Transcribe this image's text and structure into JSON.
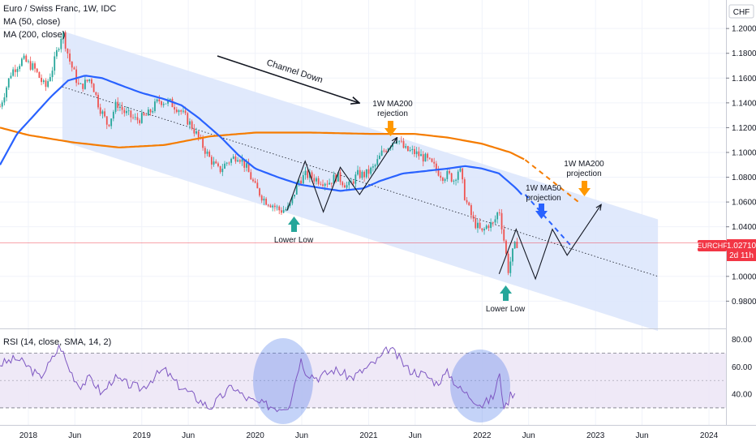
{
  "header": {
    "title": "Euro / Swiss Franc, 1W, IDC",
    "ma50": "MA (50, close)",
    "ma200": "MA (200, close)",
    "currency": "CHF"
  },
  "rsi": {
    "title": "RSI (14, close, SMA, 14, 2)",
    "ticks": [
      "80.00",
      "60.00",
      "40.00"
    ]
  },
  "price_label": {
    "symbol": "EURCHF",
    "value": "1.02710",
    "countdown": "2d 11h"
  },
  "annotations": {
    "channel": "Channel Down",
    "rejection_1": "1W MA200",
    "rejection_2": "rejection",
    "ma200_proj_1": "1W MA200",
    "ma200_proj_2": "projection",
    "ma50_proj_1": "1W MA50",
    "ma50_proj_2": "projection",
    "lower_low_1": "Lower Low",
    "lower_low_2": "Lower Low"
  },
  "colors": {
    "up": "#26a69a",
    "down": "#ef5350",
    "ma50": "#2962ff",
    "ma200": "#f57c00",
    "channel_fill": "#dbe5fb",
    "rsi_line": "#7e57c2",
    "rsi_band": "#ede7f6",
    "price_tag": "#f23645",
    "arrow_orange": "#ff9800",
    "arrow_blue": "#2962ff",
    "arrow_green": "#26a69a"
  },
  "chart_data": {
    "type": "candlestick",
    "x_axis": {
      "labels": [
        "2018",
        "Jun",
        "2019",
        "Jun",
        "2020",
        "Jun",
        "2021",
        "Jun",
        "2022",
        "Jun",
        "2023",
        "Jun",
        "2024"
      ],
      "label_times": [
        2018.0,
        2018.41,
        2019.0,
        2019.41,
        2020.0,
        2020.41,
        2021.0,
        2021.41,
        2022.0,
        2022.41,
        2023.0,
        2023.41,
        2024.0
      ],
      "range": [
        2017.75,
        2024.15
      ]
    },
    "y_axis": {
      "ticks": [
        "1.20000",
        "1.18000",
        "1.16000",
        "1.14000",
        "1.12000",
        "1.10000",
        "1.08000",
        "1.06000",
        "1.04000",
        "1.00000",
        "0.98000"
      ],
      "tick_values": [
        1.2,
        1.18,
        1.16,
        1.14,
        1.12,
        1.1,
        1.08,
        1.06,
        1.04,
        1.0,
        0.98
      ],
      "range": [
        0.958,
        1.223
      ]
    },
    "price_series_anchors": [
      [
        2017.75,
        1.137
      ],
      [
        2017.85,
        1.165
      ],
      [
        2017.95,
        1.175
      ],
      [
        2018.05,
        1.168
      ],
      [
        2018.15,
        1.152
      ],
      [
        2018.22,
        1.17
      ],
      [
        2018.3,
        1.198
      ],
      [
        2018.36,
        1.175
      ],
      [
        2018.45,
        1.152
      ],
      [
        2018.55,
        1.16
      ],
      [
        2018.62,
        1.138
      ],
      [
        2018.7,
        1.122
      ],
      [
        2018.78,
        1.14
      ],
      [
        2018.85,
        1.132
      ],
      [
        2018.95,
        1.126
      ],
      [
        2019.05,
        1.13
      ],
      [
        2019.15,
        1.142
      ],
      [
        2019.25,
        1.14
      ],
      [
        2019.33,
        1.135
      ],
      [
        2019.45,
        1.12
      ],
      [
        2019.52,
        1.108
      ],
      [
        2019.6,
        1.095
      ],
      [
        2019.68,
        1.085
      ],
      [
        2019.75,
        1.092
      ],
      [
        2019.85,
        1.098
      ],
      [
        2019.92,
        1.088
      ],
      [
        2020.0,
        1.072
      ],
      [
        2020.08,
        1.062
      ],
      [
        2020.15,
        1.058
      ],
      [
        2020.22,
        1.053
      ],
      [
        2020.3,
        1.055
      ],
      [
        2020.38,
        1.077
      ],
      [
        2020.45,
        1.082
      ],
      [
        2020.55,
        1.078
      ],
      [
        2020.65,
        1.076
      ],
      [
        2020.72,
        1.081
      ],
      [
        2020.82,
        1.072
      ],
      [
        2020.9,
        1.082
      ],
      [
        2020.97,
        1.082
      ],
      [
        2021.05,
        1.088
      ],
      [
        2021.12,
        1.1
      ],
      [
        2021.2,
        1.108
      ],
      [
        2021.25,
        1.112
      ],
      [
        2021.32,
        1.102
      ],
      [
        2021.4,
        1.1
      ],
      [
        2021.5,
        1.095
      ],
      [
        2021.58,
        1.088
      ],
      [
        2021.65,
        1.081
      ],
      [
        2021.7,
        1.082
      ],
      [
        2021.75,
        1.078
      ],
      [
        2021.8,
        1.088
      ],
      [
        2021.85,
        1.063
      ],
      [
        2021.92,
        1.045
      ],
      [
        2022.0,
        1.035
      ],
      [
        2022.05,
        1.042
      ],
      [
        2022.1,
        1.042
      ],
      [
        2022.15,
        1.055
      ],
      [
        2022.2,
        1.025
      ],
      [
        2022.23,
        1.005
      ],
      [
        2022.28,
        1.023
      ],
      [
        2022.31,
        1.027
      ]
    ],
    "ma50_anchors": [
      [
        2017.75,
        1.09
      ],
      [
        2017.9,
        1.115
      ],
      [
        2018.05,
        1.13
      ],
      [
        2018.2,
        1.145
      ],
      [
        2018.35,
        1.158
      ],
      [
        2018.5,
        1.162
      ],
      [
        2018.65,
        1.16
      ],
      [
        2018.85,
        1.153
      ],
      [
        2019.0,
        1.148
      ],
      [
        2019.2,
        1.143
      ],
      [
        2019.35,
        1.138
      ],
      [
        2019.5,
        1.128
      ],
      [
        2019.7,
        1.112
      ],
      [
        2019.85,
        1.098
      ],
      [
        2020.0,
        1.087
      ],
      [
        2020.2,
        1.08
      ],
      [
        2020.4,
        1.074
      ],
      [
        2020.6,
        1.071
      ],
      [
        2020.75,
        1.069
      ],
      [
        2020.95,
        1.071
      ],
      [
        2021.1,
        1.077
      ],
      [
        2021.3,
        1.083
      ],
      [
        2021.5,
        1.085
      ],
      [
        2021.7,
        1.087
      ],
      [
        2021.85,
        1.089
      ],
      [
        2022.0,
        1.087
      ],
      [
        2022.15,
        1.083
      ],
      [
        2022.3,
        1.071
      ],
      [
        2022.35,
        1.066
      ]
    ],
    "ma200_anchors": [
      [
        2017.75,
        1.12
      ],
      [
        2018.0,
        1.114
      ],
      [
        2018.4,
        1.108
      ],
      [
        2018.8,
        1.104
      ],
      [
        2019.2,
        1.106
      ],
      [
        2019.6,
        1.113
      ],
      [
        2020.0,
        1.116
      ],
      [
        2020.5,
        1.116
      ],
      [
        2021.0,
        1.115
      ],
      [
        2021.4,
        1.115
      ],
      [
        2021.7,
        1.112
      ],
      [
        2022.0,
        1.107
      ],
      [
        2022.25,
        1.1
      ],
      [
        2022.38,
        1.094
      ]
    ],
    "ma200_projection": [
      [
        2022.38,
        1.094
      ],
      [
        2022.85,
        1.06
      ]
    ],
    "ma50_projection": [
      [
        2022.38,
        1.066
      ],
      [
        2022.8,
        1.023
      ]
    ],
    "channel": {
      "upper": [
        [
          2018.3,
          1.198
        ],
        [
          2023.55,
          1.046
        ]
      ],
      "lower": [
        [
          2018.3,
          1.109
        ],
        [
          2023.55,
          0.956
        ]
      ],
      "midline": [
        [
          2018.3,
          1.153
        ],
        [
          2023.55,
          1.0
        ]
      ]
    },
    "black_zigzags": [
      [
        [
          2020.28,
          1.053
        ],
        [
          2020.44,
          1.093
        ],
        [
          2020.6,
          1.052
        ],
        [
          2020.75,
          1.088
        ],
        [
          2020.92,
          1.066
        ],
        [
          2021.25,
          1.112
        ]
      ],
      [
        [
          2022.15,
          1.002
        ],
        [
          2022.3,
          1.038
        ],
        [
          2022.47,
          0.998
        ],
        [
          2022.62,
          1.038
        ],
        [
          2022.75,
          1.017
        ],
        [
          2023.05,
          1.058
        ]
      ]
    ],
    "rsi_series_anchors": [
      [
        2017.75,
        62
      ],
      [
        2017.9,
        66
      ],
      [
        2018.0,
        60
      ],
      [
        2018.1,
        52
      ],
      [
        2018.2,
        64
      ],
      [
        2018.28,
        76
      ],
      [
        2018.35,
        60
      ],
      [
        2018.45,
        46
      ],
      [
        2018.55,
        52
      ],
      [
        2018.65,
        40
      ],
      [
        2018.75,
        52
      ],
      [
        2018.85,
        48
      ],
      [
        2019.0,
        44
      ],
      [
        2019.1,
        52
      ],
      [
        2019.2,
        58
      ],
      [
        2019.3,
        48
      ],
      [
        2019.4,
        42
      ],
      [
        2019.5,
        36
      ],
      [
        2019.6,
        30
      ],
      [
        2019.7,
        38
      ],
      [
        2019.8,
        46
      ],
      [
        2019.9,
        38
      ],
      [
        2020.0,
        34
      ],
      [
        2020.1,
        32
      ],
      [
        2020.2,
        30
      ],
      [
        2020.3,
        32
      ],
      [
        2020.4,
        66
      ],
      [
        2020.45,
        56
      ],
      [
        2020.55,
        52
      ],
      [
        2020.7,
        58
      ],
      [
        2020.85,
        52
      ],
      [
        2021.0,
        60
      ],
      [
        2021.1,
        66
      ],
      [
        2021.18,
        74
      ],
      [
        2021.25,
        68
      ],
      [
        2021.35,
        58
      ],
      [
        2021.5,
        54
      ],
      [
        2021.6,
        48
      ],
      [
        2021.7,
        56
      ],
      [
        2021.8,
        44
      ],
      [
        2021.9,
        38
      ],
      [
        2022.0,
        32
      ],
      [
        2022.1,
        38
      ],
      [
        2022.15,
        55
      ],
      [
        2022.2,
        28
      ],
      [
        2022.25,
        40
      ],
      [
        2022.3,
        42
      ]
    ]
  }
}
